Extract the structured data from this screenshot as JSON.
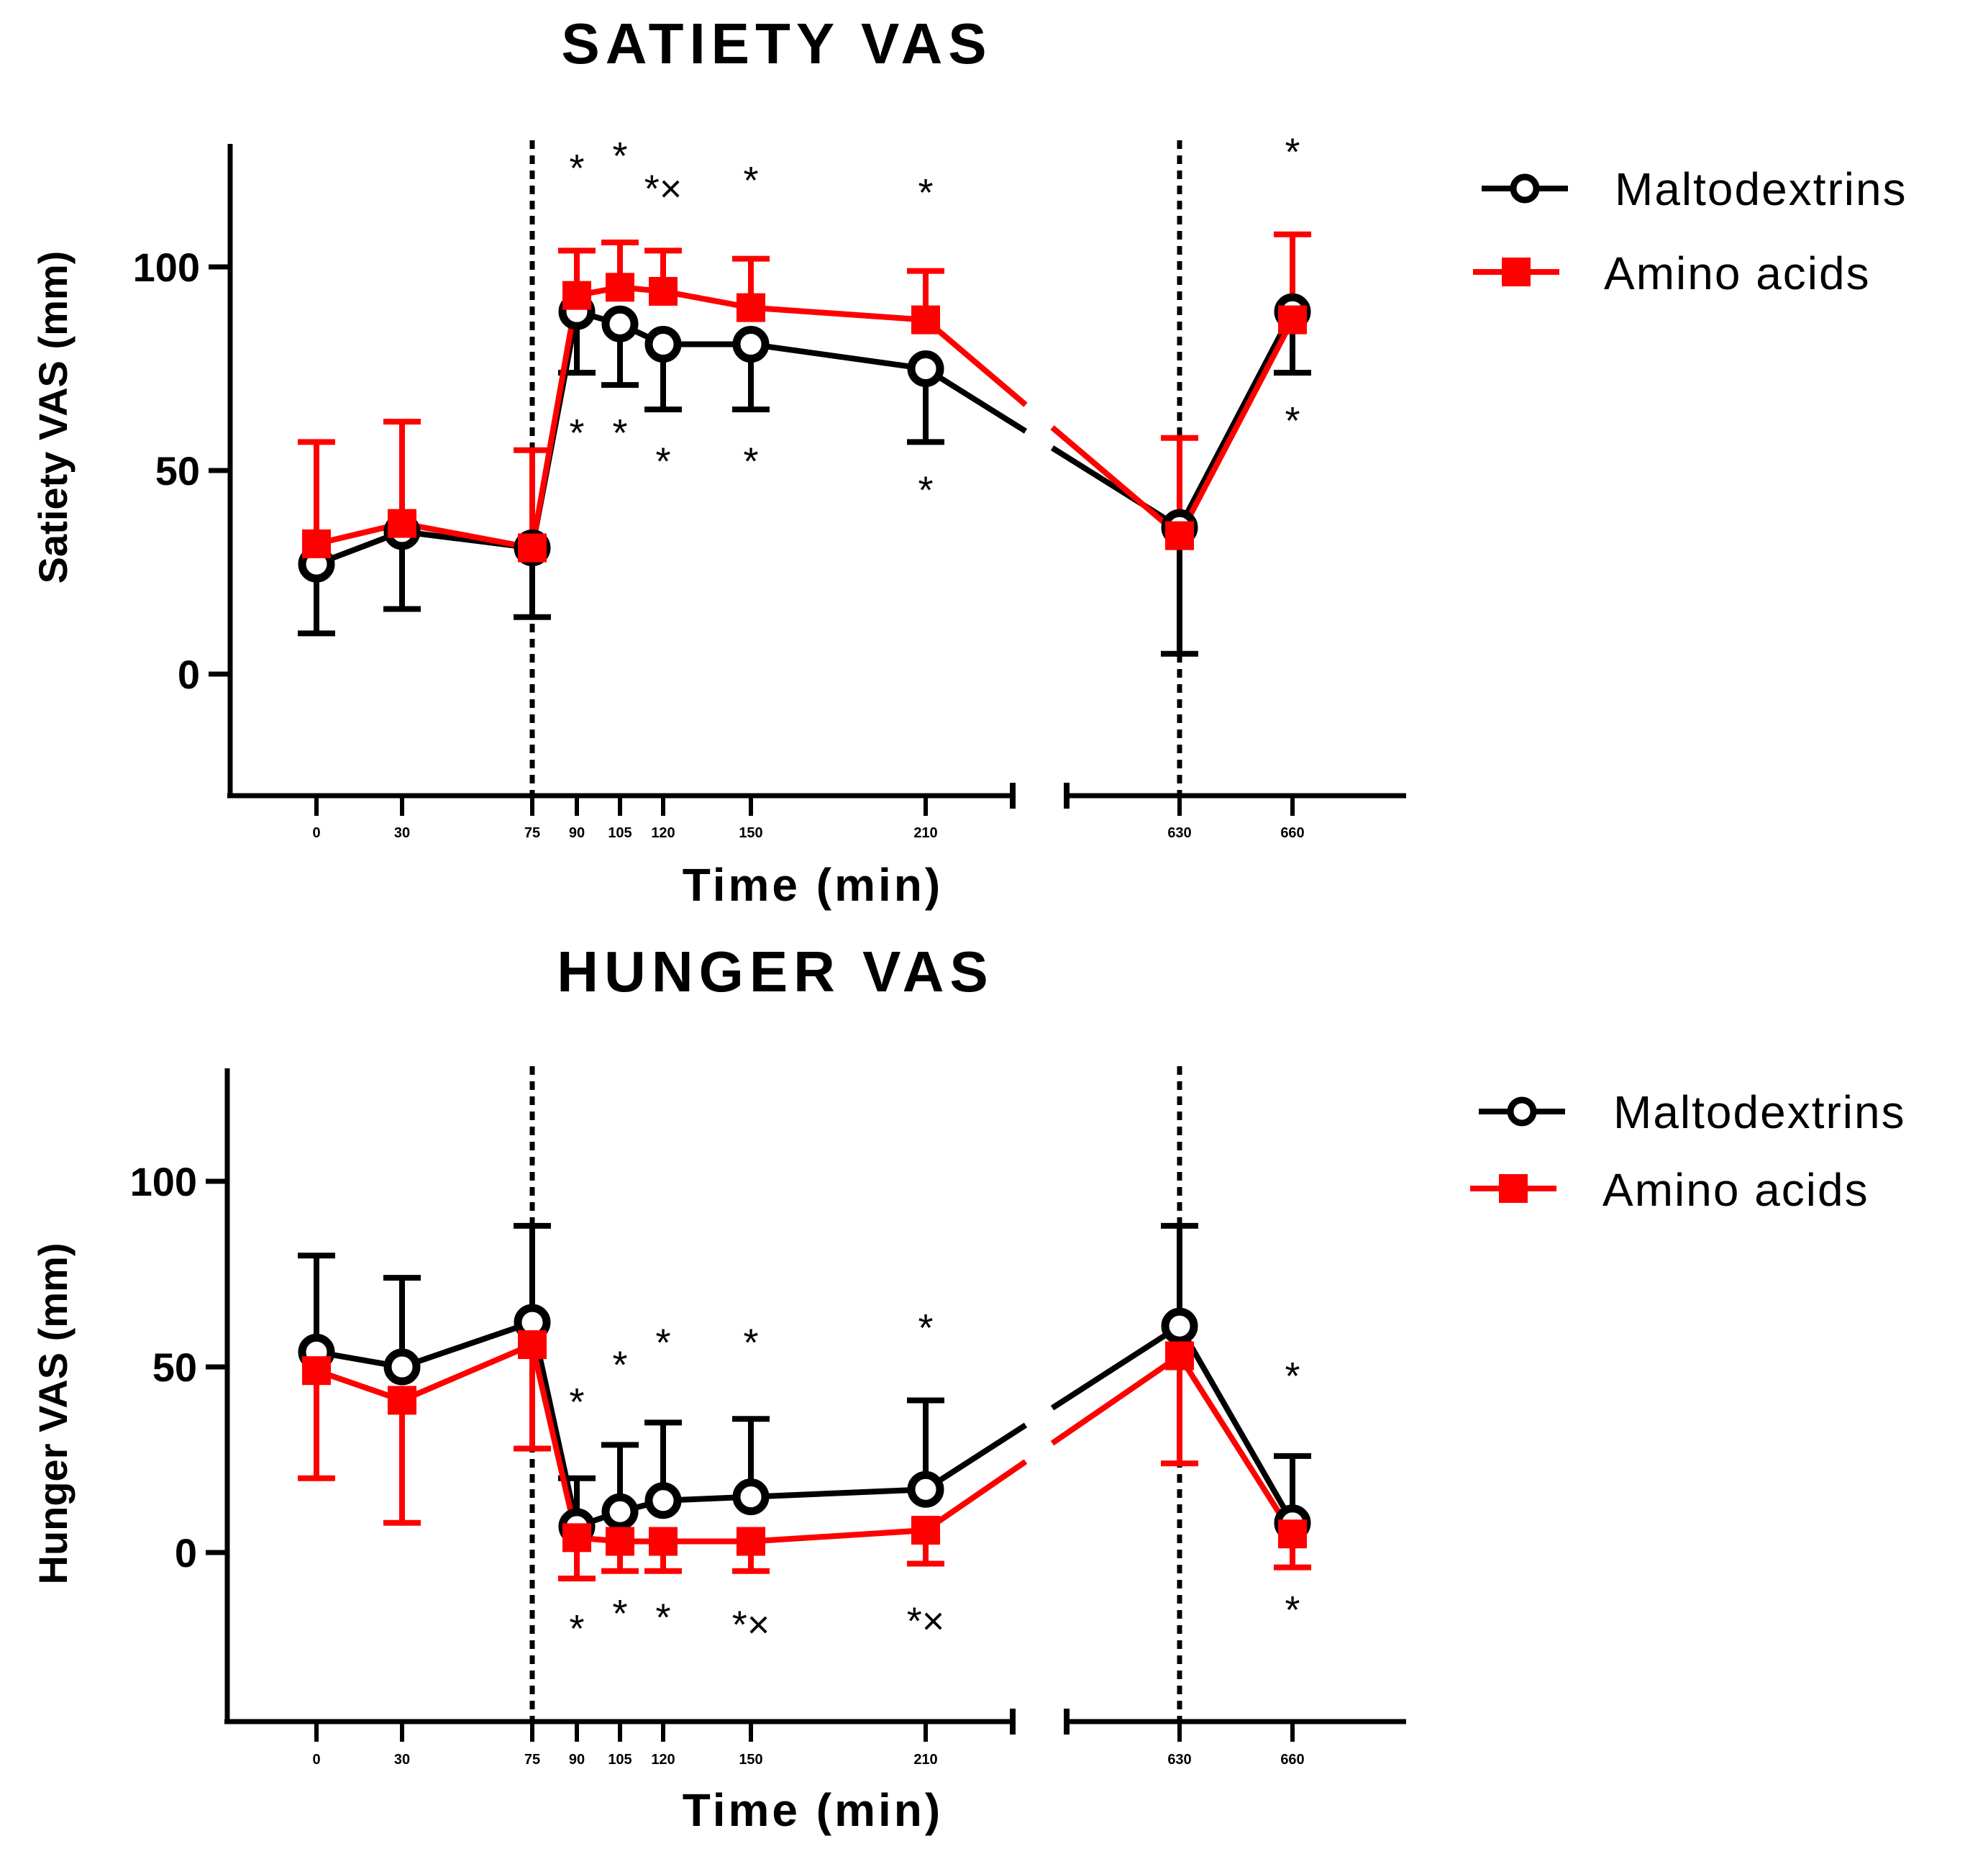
{
  "chart_data": [
    {
      "type": "line",
      "title": "SATIETY VAS",
      "xlabel": "Time (min)",
      "ylabel": "Satiety VAS (mm)",
      "ylim": [
        -30,
        130
      ],
      "yticks": [
        0,
        50,
        100
      ],
      "x_ticks": [
        0,
        30,
        75,
        90,
        105,
        120,
        150,
        210,
        630,
        660
      ],
      "axis_break": {
        "after": 210,
        "before": 630
      },
      "reference_lines_x": [
        75,
        630
      ],
      "legend": [
        "Maltodextrins",
        "Amino acids"
      ],
      "series": [
        {
          "name": "Maltodextrins",
          "color": "#000000",
          "marker": "open-circle",
          "error_bar_direction": "down",
          "x": [
            0,
            30,
            75,
            90,
            105,
            120,
            150,
            210,
            630,
            660
          ],
          "y": [
            27,
            35,
            31,
            89,
            86,
            81,
            81,
            75,
            36,
            89
          ],
          "err": [
            17,
            19,
            17,
            15,
            15,
            16,
            16,
            18,
            31,
            15
          ]
        },
        {
          "name": "Amino acids",
          "color": "#ff0000",
          "marker": "filled-square",
          "error_bar_direction": "up",
          "x": [
            0,
            30,
            75,
            90,
            105,
            120,
            150,
            210,
            630,
            660
          ],
          "y": [
            32,
            37,
            31,
            93,
            95,
            94,
            90,
            87,
            34,
            87
          ],
          "err": [
            25,
            25,
            24,
            11,
            11,
            10,
            12,
            12,
            24,
            21
          ]
        }
      ],
      "annotations": [
        {
          "x": 90,
          "y": 121,
          "text": "*"
        },
        {
          "x": 105,
          "y": 124,
          "text": "*"
        },
        {
          "x": 120,
          "y": 116,
          "text": "*×"
        },
        {
          "x": 150,
          "y": 118,
          "text": "*"
        },
        {
          "x": 210,
          "y": 115,
          "text": "*"
        },
        {
          "x": 660,
          "y": 125,
          "text": "*"
        },
        {
          "x": 90,
          "y": 56,
          "text": "*"
        },
        {
          "x": 105,
          "y": 56,
          "text": "*"
        },
        {
          "x": 120,
          "y": 49,
          "text": "*"
        },
        {
          "x": 150,
          "y": 49,
          "text": "*"
        },
        {
          "x": 210,
          "y": 42,
          "text": "*"
        },
        {
          "x": 660,
          "y": 59,
          "text": "*"
        }
      ]
    },
    {
      "type": "line",
      "title": "HUNGER VAS",
      "xlabel": "Time (min)",
      "ylabel": "Hunger VAS (mm)",
      "ylim": [
        -45,
        130
      ],
      "yticks": [
        0,
        50,
        100
      ],
      "x_ticks": [
        0,
        30,
        75,
        90,
        105,
        120,
        150,
        210,
        630,
        660
      ],
      "axis_break": {
        "after": 210,
        "before": 630
      },
      "reference_lines_x": [
        75,
        630
      ],
      "legend": [
        "Maltodextrins",
        "Amino acids"
      ],
      "series": [
        {
          "name": "Maltodextrins",
          "color": "#000000",
          "marker": "open-circle",
          "error_bar_direction": "up",
          "x": [
            0,
            30,
            75,
            90,
            105,
            120,
            150,
            210,
            630,
            660
          ],
          "y": [
            54,
            50,
            62,
            7,
            11,
            14,
            15,
            17,
            61,
            8
          ],
          "err": [
            26,
            24,
            26,
            13,
            18,
            21,
            21,
            24,
            27,
            18
          ]
        },
        {
          "name": "Amino acids",
          "color": "#ff0000",
          "marker": "filled-square",
          "error_bar_direction": "down",
          "x": [
            0,
            30,
            75,
            90,
            105,
            120,
            150,
            210,
            630,
            660
          ],
          "y": [
            49,
            41,
            56,
            4,
            3,
            3,
            3,
            6,
            53,
            5
          ],
          "err": [
            29,
            33,
            28,
            11,
            8,
            8,
            8,
            9,
            29,
            9
          ]
        }
      ],
      "annotations": [
        {
          "x": 90,
          "y": 37,
          "text": "*"
        },
        {
          "x": 105,
          "y": 47,
          "text": "*"
        },
        {
          "x": 120,
          "y": 53,
          "text": "*"
        },
        {
          "x": 150,
          "y": 53,
          "text": "*"
        },
        {
          "x": 210,
          "y": 57,
          "text": "*"
        },
        {
          "x": 660,
          "y": 44,
          "text": "*"
        },
        {
          "x": 90,
          "y": -24,
          "text": "*"
        },
        {
          "x": 105,
          "y": -20,
          "text": "*"
        },
        {
          "x": 120,
          "y": -21,
          "text": "*"
        },
        {
          "x": 150,
          "y": -23,
          "text": "*×"
        },
        {
          "x": 210,
          "y": -22,
          "text": "*×"
        },
        {
          "x": 660,
          "y": -19,
          "text": "*"
        }
      ]
    }
  ]
}
